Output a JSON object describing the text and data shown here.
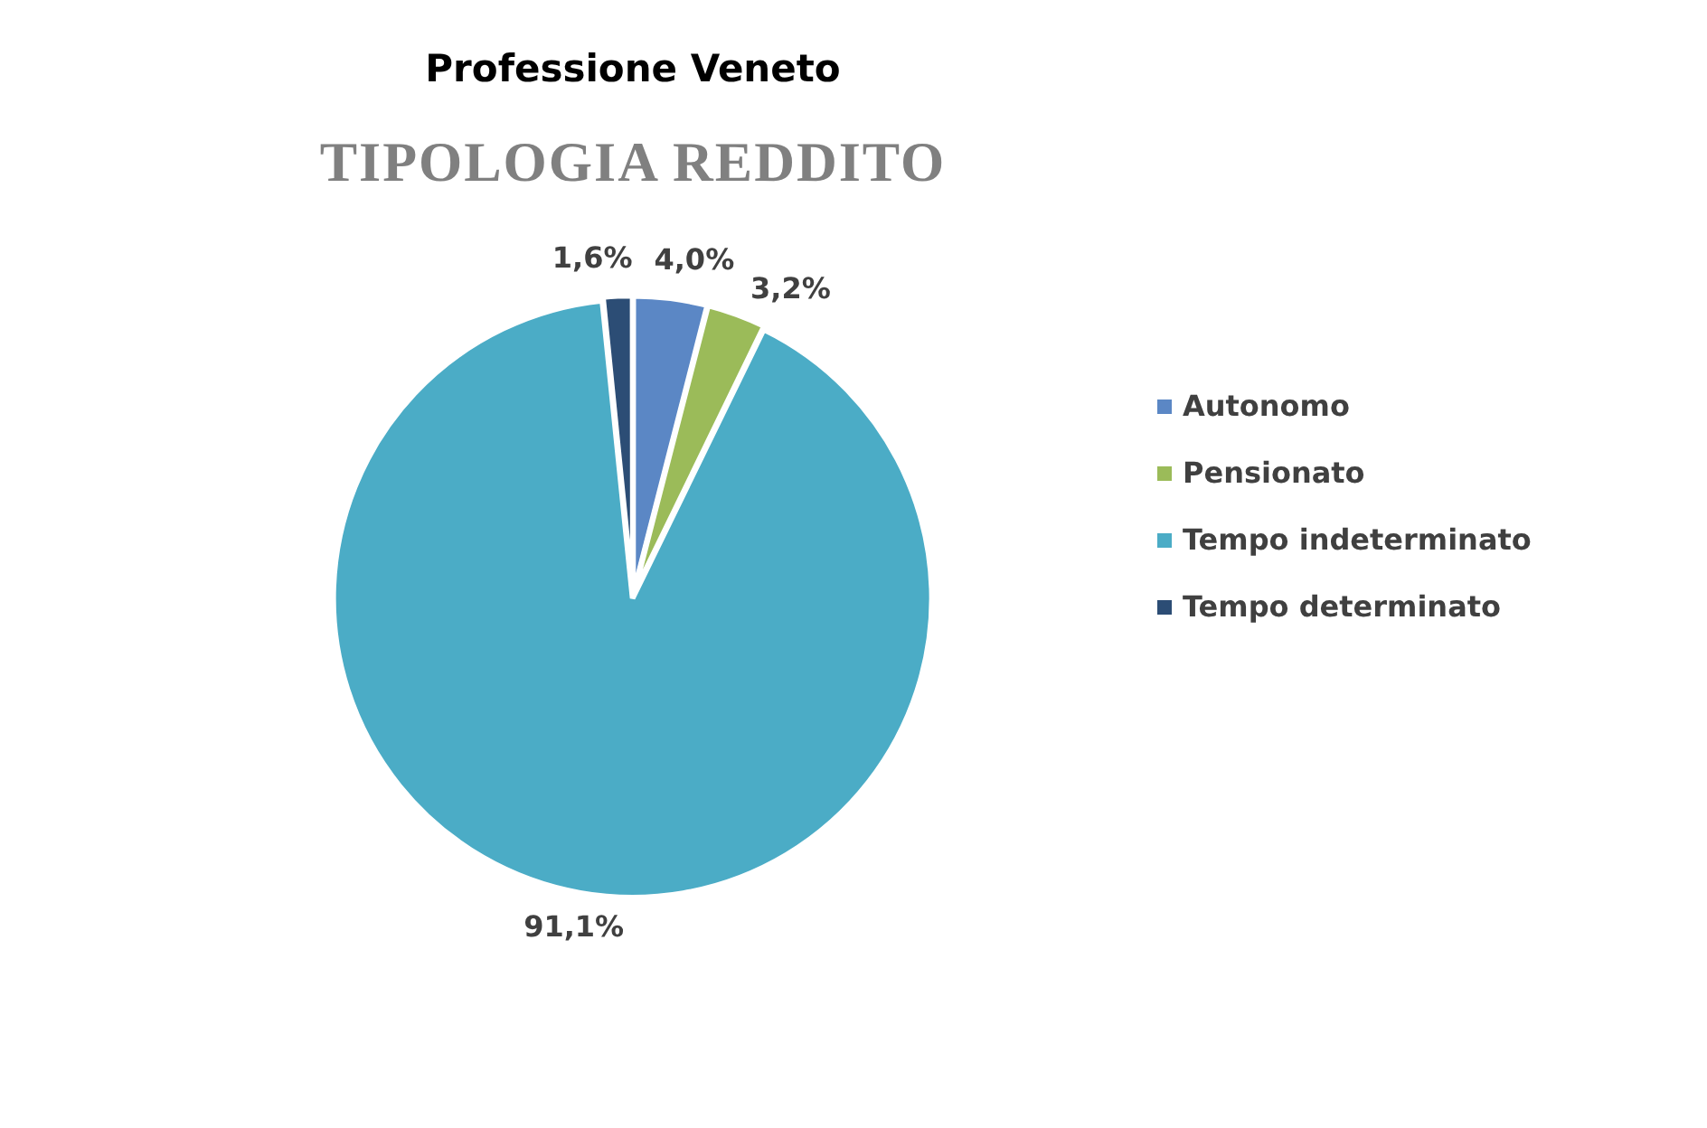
{
  "chart_data": {
    "type": "pie",
    "title": "Professione Veneto",
    "subtitle": "TIPOLOGIA REDDITO",
    "categories": [
      "Autonomo",
      "Pensionato",
      "Tempo indeterminato",
      "Tempo determinato"
    ],
    "values": [
      4.0,
      3.2,
      91.1,
      1.6
    ],
    "colors": [
      "#5b87c5",
      "#9bbb59",
      "#4bacc6",
      "#2c4d75"
    ],
    "value_labels": [
      "4,0%",
      "3,2%",
      "91,1%",
      "1,6%"
    ],
    "legend": "right"
  }
}
